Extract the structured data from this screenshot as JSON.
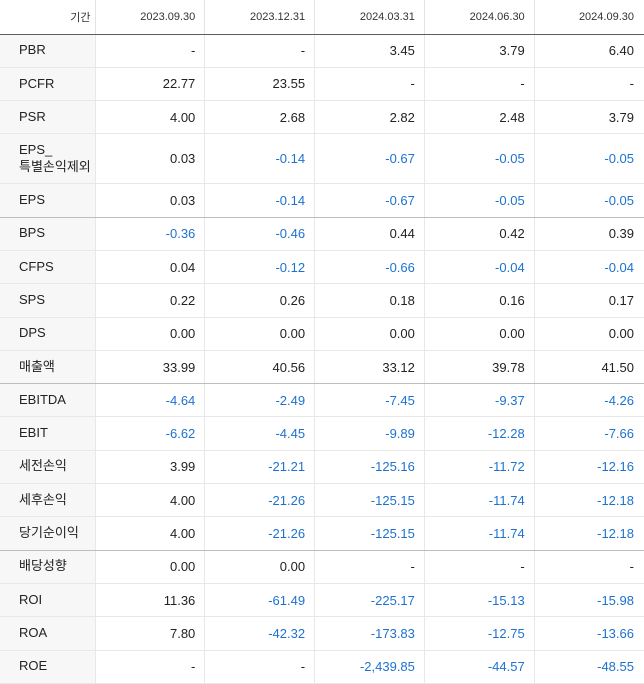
{
  "header": {
    "period_label": "기간",
    "periods": [
      "2023.09.30",
      "2023.12.31",
      "2024.03.31",
      "2024.06.30",
      "2024.09.30"
    ]
  },
  "colors": {
    "negative": "#1d72d0",
    "positive": "#222222",
    "label_bg": "#f7f7f7"
  },
  "rows": [
    {
      "label": "PBR",
      "values": [
        "-",
        "-",
        "3.45",
        "3.79",
        "6.40"
      ]
    },
    {
      "label": "PCFR",
      "values": [
        "22.77",
        "23.55",
        "-",
        "-",
        "-"
      ]
    },
    {
      "label": "PSR",
      "values": [
        "4.00",
        "2.68",
        "2.82",
        "2.48",
        "3.79"
      ]
    },
    {
      "label": "EPS_\n특별손익제외",
      "values": [
        "0.03",
        "-0.14",
        "-0.67",
        "-0.05",
        "-0.05"
      ]
    },
    {
      "label": "EPS",
      "values": [
        "0.03",
        "-0.14",
        "-0.67",
        "-0.05",
        "-0.05"
      ]
    },
    {
      "label": "BPS",
      "values": [
        "-0.36",
        "-0.46",
        "0.44",
        "0.42",
        "0.39"
      ]
    },
    {
      "label": "CFPS",
      "values": [
        "0.04",
        "-0.12",
        "-0.66",
        "-0.04",
        "-0.04"
      ]
    },
    {
      "label": "SPS",
      "values": [
        "0.22",
        "0.26",
        "0.18",
        "0.16",
        "0.17"
      ]
    },
    {
      "label": "DPS",
      "values": [
        "0.00",
        "0.00",
        "0.00",
        "0.00",
        "0.00"
      ]
    },
    {
      "label": "매출액",
      "values": [
        "33.99",
        "40.56",
        "33.12",
        "39.78",
        "41.50"
      ]
    },
    {
      "label": "EBITDA",
      "values": [
        "-4.64",
        "-2.49",
        "-7.45",
        "-9.37",
        "-4.26"
      ]
    },
    {
      "label": "EBIT",
      "values": [
        "-6.62",
        "-4.45",
        "-9.89",
        "-12.28",
        "-7.66"
      ]
    },
    {
      "label": "세전손익",
      "values": [
        "3.99",
        "-21.21",
        "-125.16",
        "-11.72",
        "-12.16"
      ]
    },
    {
      "label": "세후손익",
      "values": [
        "4.00",
        "-21.26",
        "-125.15",
        "-11.74",
        "-12.18"
      ]
    },
    {
      "label": "당기순이익",
      "values": [
        "4.00",
        "-21.26",
        "-125.15",
        "-11.74",
        "-12.18"
      ]
    },
    {
      "label": "배당성향",
      "values": [
        "0.00",
        "0.00",
        "-",
        "-",
        "-"
      ]
    },
    {
      "label": "ROI",
      "values": [
        "11.36",
        "-61.49",
        "-225.17",
        "-15.13",
        "-15.98"
      ]
    },
    {
      "label": "ROA",
      "values": [
        "7.80",
        "-42.32",
        "-173.83",
        "-12.75",
        "-13.66"
      ]
    },
    {
      "label": "ROE",
      "values": [
        "-",
        "-",
        "-2,439.85",
        "-44.57",
        "-48.55"
      ]
    }
  ]
}
